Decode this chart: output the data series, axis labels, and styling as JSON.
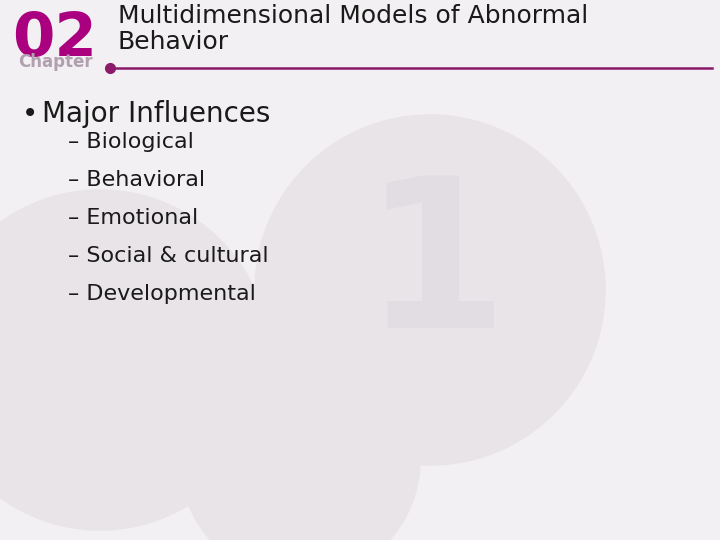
{
  "title_line1": "Multidimensional Models of Abnormal",
  "title_line2": "Behavior",
  "chapter_num": "02",
  "chapter_label": "Chapter",
  "bullet_main": "Major Influences",
  "sub_items": [
    "– Biological",
    "– Behavioral",
    "– Emotional",
    "– Social & cultural",
    "– Developmental"
  ],
  "bg_color": "#f2f0f2",
  "title_color": "#1a1a1a",
  "chapter_num_color": "#aa007f",
  "chapter_label_color": "#b0a0b0",
  "line_color": "#8b1a6b",
  "text_color": "#1a1a1a",
  "watermark_color": "#e2dde2",
  "circle_color": "#e8e4e8",
  "title_fontsize": 18,
  "chapter_num_fontsize": 44,
  "chapter_label_fontsize": 12,
  "bullet_fontsize": 20,
  "sub_fontsize": 16
}
